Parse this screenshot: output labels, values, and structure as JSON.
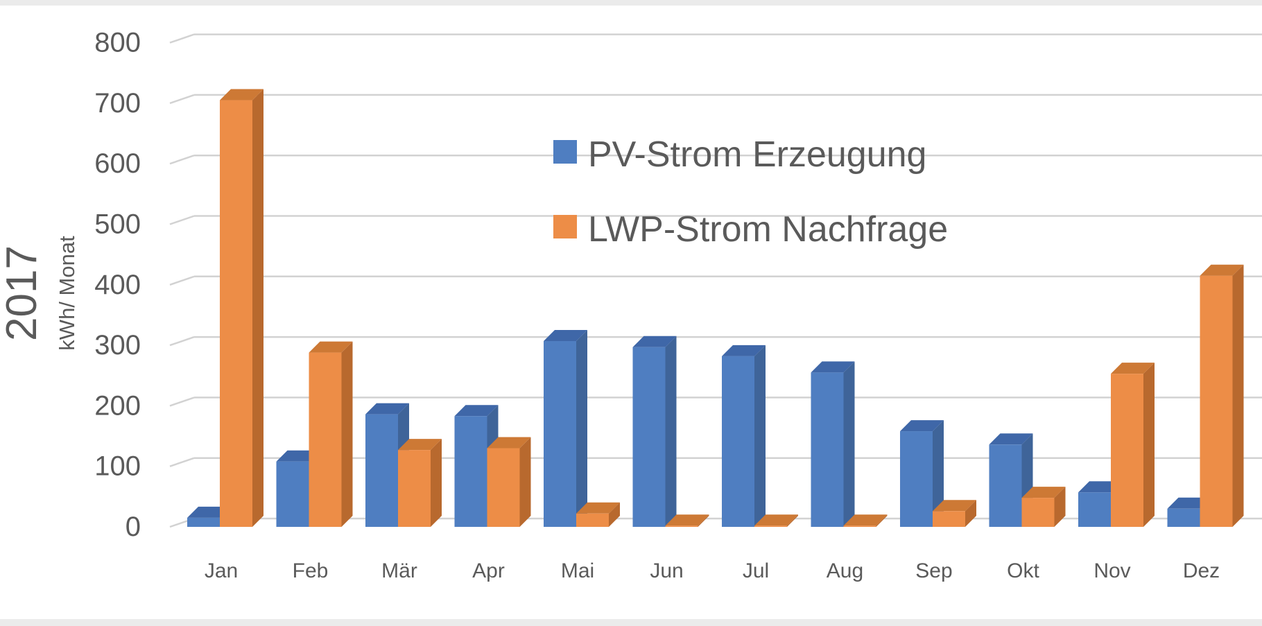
{
  "chart_data": {
    "type": "bar",
    "title": "2017",
    "ylabel": "kWh/ Monat",
    "xlabel": "",
    "ylim": [
      0,
      800
    ],
    "yticks": [
      0,
      100,
      200,
      300,
      400,
      500,
      600,
      700,
      800
    ],
    "grid": true,
    "legend_position": "top-center",
    "categories": [
      "Jan",
      "Feb",
      "Mär",
      "Apr",
      "Mai",
      "Jun",
      "Jul",
      "Aug",
      "Sep",
      "Okt",
      "Nov",
      "Dez"
    ],
    "series": [
      {
        "name": "PV-Strom Erzeugung",
        "color": "#4f7ec1",
        "values": [
          15,
          108,
          186,
          183,
          307,
          297,
          282,
          255,
          158,
          136,
          57,
          30
        ]
      },
      {
        "name": "LWP-Strom Nachfrage",
        "color": "#ed8d47",
        "values": [
          705,
          288,
          127,
          130,
          22,
          2,
          2,
          2,
          26,
          48,
          253,
          415
        ]
      }
    ]
  },
  "colors": {
    "pv_side": "#3f6499",
    "pv_top": "#3f67a8",
    "lwp_side": "#b8692e",
    "lwp_top": "#cd7935",
    "text": "#5a5a5a",
    "grid": "#d2d2d2"
  }
}
